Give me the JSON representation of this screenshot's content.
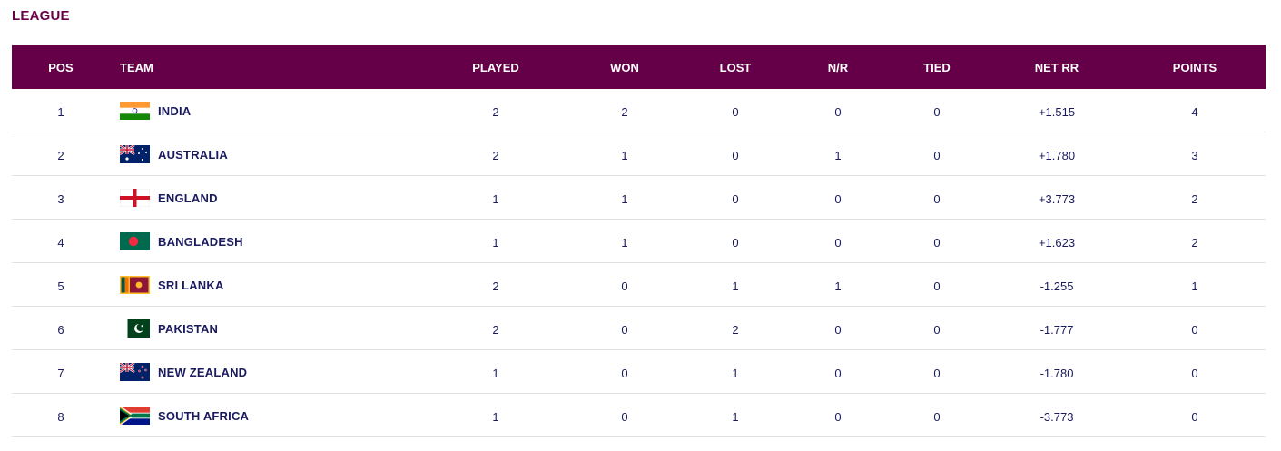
{
  "section_title": "LEAGUE",
  "columns": {
    "pos": "POS",
    "team": "TEAM",
    "played": "PLAYED",
    "won": "WON",
    "lost": "LOST",
    "nr": "N/R",
    "tied": "TIED",
    "netrr": "NET RR",
    "points": "POINTS"
  },
  "rows": [
    {
      "pos": "1",
      "team": "INDIA",
      "flag": "india-flag-icon",
      "played": "2",
      "won": "2",
      "lost": "0",
      "nr": "0",
      "tied": "0",
      "netrr": "+1.515",
      "points": "4"
    },
    {
      "pos": "2",
      "team": "AUSTRALIA",
      "flag": "australia-flag-icon",
      "played": "2",
      "won": "1",
      "lost": "0",
      "nr": "1",
      "tied": "0",
      "netrr": "+1.780",
      "points": "3"
    },
    {
      "pos": "3",
      "team": "ENGLAND",
      "flag": "england-flag-icon",
      "played": "1",
      "won": "1",
      "lost": "0",
      "nr": "0",
      "tied": "0",
      "netrr": "+3.773",
      "points": "2"
    },
    {
      "pos": "4",
      "team": "BANGLADESH",
      "flag": "bangladesh-flag-icon",
      "played": "1",
      "won": "1",
      "lost": "0",
      "nr": "0",
      "tied": "0",
      "netrr": "+1.623",
      "points": "2"
    },
    {
      "pos": "5",
      "team": "SRI LANKA",
      "flag": "sri-lanka-flag-icon",
      "played": "2",
      "won": "0",
      "lost": "1",
      "nr": "1",
      "tied": "0",
      "netrr": "-1.255",
      "points": "1"
    },
    {
      "pos": "6",
      "team": "PAKISTAN",
      "flag": "pakistan-flag-icon",
      "played": "2",
      "won": "0",
      "lost": "2",
      "nr": "0",
      "tied": "0",
      "netrr": "-1.777",
      "points": "0"
    },
    {
      "pos": "7",
      "team": "NEW ZEALAND",
      "flag": "new-zealand-flag-icon",
      "played": "1",
      "won": "0",
      "lost": "1",
      "nr": "0",
      "tied": "0",
      "netrr": "-1.780",
      "points": "0"
    },
    {
      "pos": "8",
      "team": "SOUTH AFRICA",
      "flag": "south-africa-flag-icon",
      "played": "1",
      "won": "0",
      "lost": "1",
      "nr": "0",
      "tied": "0",
      "netrr": "-3.773",
      "points": "0"
    }
  ],
  "colors": {
    "header_bg": "#650048",
    "title": "#6b0047",
    "text": "#1a1a5e"
  }
}
